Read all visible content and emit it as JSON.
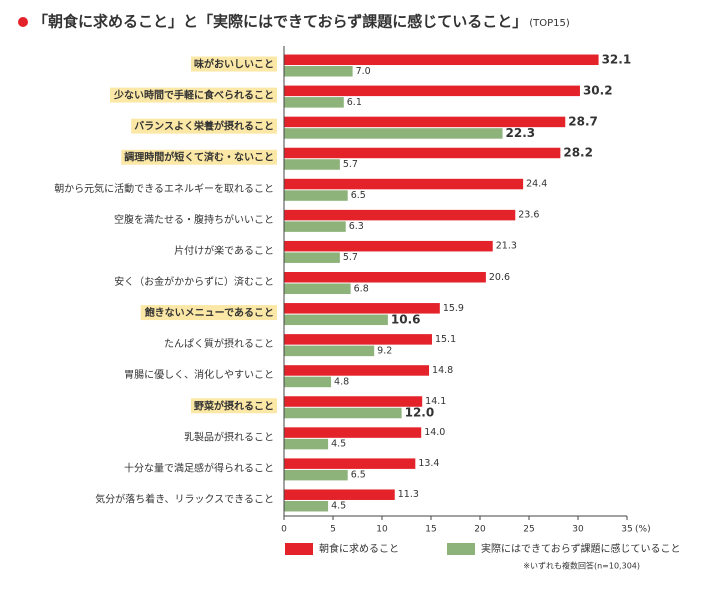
{
  "chart_data": {
    "type": "hbar",
    "title": "「朝食に求めること」と「実際にはできておらず課題に感じていること」",
    "title_suffix": "(TOP15)",
    "categories": [
      "味がおいしいこと",
      "少ない時間で手軽に食べられること",
      "バランスよく栄養が摂れること",
      "調理時間が短くて済む・ないこと",
      "朝から元気に活動できるエネルギーを取れること",
      "空腹を満たせる・腹持ちがいいこと",
      "片付けが楽であること",
      "安く（お金がかからずに）済むこと",
      "飽きないメニューであること",
      "たんぱく質が摂れること",
      "胃腸に優しく、消化しやすいこと",
      "野菜が摂れること",
      "乳製品が摂れること",
      "十分な量で満足感が得られること",
      "気分が落ち着き、リラックスできること"
    ],
    "highlighted_categories": [
      0,
      1,
      2,
      3,
      8,
      11
    ],
    "highlight_background": "#fce8a6",
    "highlight_color": "#f26522",
    "series": [
      {
        "name": "朝食に求めること",
        "color": "#e3222a",
        "values": [
          32.1,
          30.2,
          28.7,
          28.2,
          24.4,
          23.6,
          21.3,
          20.6,
          15.9,
          15.1,
          14.8,
          14.1,
          14.0,
          13.4,
          11.3
        ],
        "value_labels": [
          "32.1",
          "30.2",
          "28.7",
          "28.2",
          "24.4",
          "23.6",
          "21.3",
          "20.6",
          "15.9",
          "15.1",
          "14.8",
          "14.1",
          "14.0",
          "13.4",
          "11.3"
        ],
        "highlighted": [
          0,
          1,
          2,
          3
        ]
      },
      {
        "name": "実際にはできておらず課題に感じていること",
        "color": "#8db27a",
        "values": [
          7.0,
          6.1,
          22.3,
          5.7,
          6.5,
          6.3,
          5.7,
          6.8,
          10.6,
          9.2,
          4.8,
          12.0,
          4.5,
          6.5,
          4.5
        ],
        "value_labels": [
          "7.0",
          "6.1",
          "22.3",
          "5.7",
          "6.5",
          "6.3",
          "5.7",
          "6.8",
          "10.6",
          "9.2",
          "4.8",
          "12.0",
          "4.5",
          "6.5",
          "4.5"
        ],
        "highlighted": [
          2,
          8,
          11
        ]
      }
    ],
    "xlim": [
      0,
      35
    ],
    "xticks": [
      0,
      5,
      10,
      15,
      20,
      25,
      30,
      35
    ],
    "x_unit": "(%)",
    "note": "※いずれも複数回答(n=10,304)"
  }
}
